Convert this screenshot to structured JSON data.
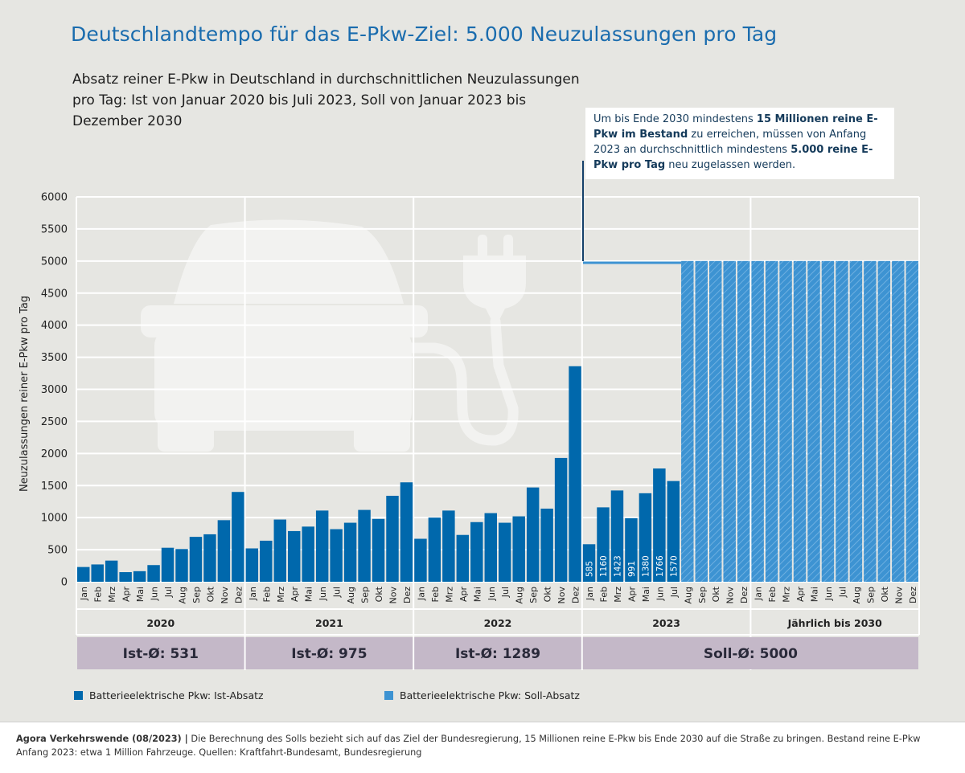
{
  "title": "Deutschlandtempo für das E-Pkw-Ziel: 5.000 Neuzulassungen pro Tag",
  "subtitle": "Absatz reiner E-Pkw in Deutschland in durchschnittlichen Neuzulassungen pro Tag: Ist von Januar 2020 bis Juli 2023, Soll von Januar 2023 bis Dezember 2030",
  "callout": {
    "t1": "Um bis Ende 2030 mindestens ",
    "b1": "15 Millionen reine E-Pkw im Bestand",
    "t2": " zu erreichen, müssen von Anfang 2023 an durchschnittlich mindestens ",
    "b2": "5.000 reine E-Pkw pro Tag",
    "t3": " neu zugelassen werden."
  },
  "legend": {
    "ist": "Batterieelektrische Pkw: Ist-Absatz",
    "soll": "Batterieelektrische Pkw: Soll-Absatz"
  },
  "footer": {
    "source": "Agora Verkehrswende (08/2023) |",
    "text": " Die Berechnung des Solls bezieht sich auf das Ziel der Bundesregierung, 15 Millionen reine E-Pkw bis Ende 2030 auf die Straße zu bringen. Bestand reine E-Pkw Anfang 2023: etwa 1 Million Fahrzeuge. Quellen: Kraftfahrt-Bundesamt, Bundesregierung"
  },
  "colors": {
    "ist": "#0068ac",
    "soll": "#3d93d2",
    "band": "#c4b8c8",
    "text_blue": "#1a6cae"
  },
  "icons": [
    "car-silhouette-icon",
    "charging-plug-icon"
  ],
  "chart_data": {
    "type": "bar",
    "ylabel": "Neuzulassungen reiner E-Pkw pro Tag",
    "ylim": [
      0,
      6000
    ],
    "yticks": [
      0,
      500,
      1000,
      1500,
      2000,
      2500,
      3000,
      3500,
      4000,
      4500,
      5000,
      5500,
      6000
    ],
    "months": [
      "Jan",
      "Feb",
      "Mrz",
      "Apr",
      "Mai",
      "Jun",
      "Jul",
      "Aug",
      "Sep",
      "Okt",
      "Nov",
      "Dez"
    ],
    "groups": [
      {
        "label": "2020",
        "avg_label": "Ist-Ø: 531",
        "series": "ist",
        "values": [
          230,
          270,
          330,
          150,
          165,
          260,
          530,
          510,
          700,
          740,
          960,
          1400
        ]
      },
      {
        "label": "2021",
        "avg_label": "Ist-Ø: 975",
        "series": "ist",
        "values": [
          520,
          640,
          970,
          790,
          860,
          1110,
          820,
          920,
          1120,
          980,
          1340,
          1550
        ]
      },
      {
        "label": "2022",
        "avg_label": "Ist-Ø: 1289",
        "series": "ist",
        "values": [
          670,
          1000,
          1110,
          730,
          930,
          1070,
          920,
          1020,
          1470,
          1140,
          1930,
          3360
        ]
      },
      {
        "label": "2023",
        "avg_label": "Soll-Ø: 5000",
        "series": "mixed",
        "values": [
          585,
          1160,
          1423,
          991,
          1380,
          1766,
          1570,
          5000,
          5000,
          5000,
          5000,
          5000
        ],
        "labeled": [
          585,
          1160,
          1423,
          991,
          1380,
          1766,
          1570
        ]
      },
      {
        "label": "Jährlich bis 2030",
        "series": "soll",
        "values": [
          5000,
          5000,
          5000,
          5000,
          5000,
          5000,
          5000,
          5000,
          5000,
          5000,
          5000,
          5000
        ]
      }
    ],
    "soll_target": 5000,
    "legend_position": "bottom"
  }
}
